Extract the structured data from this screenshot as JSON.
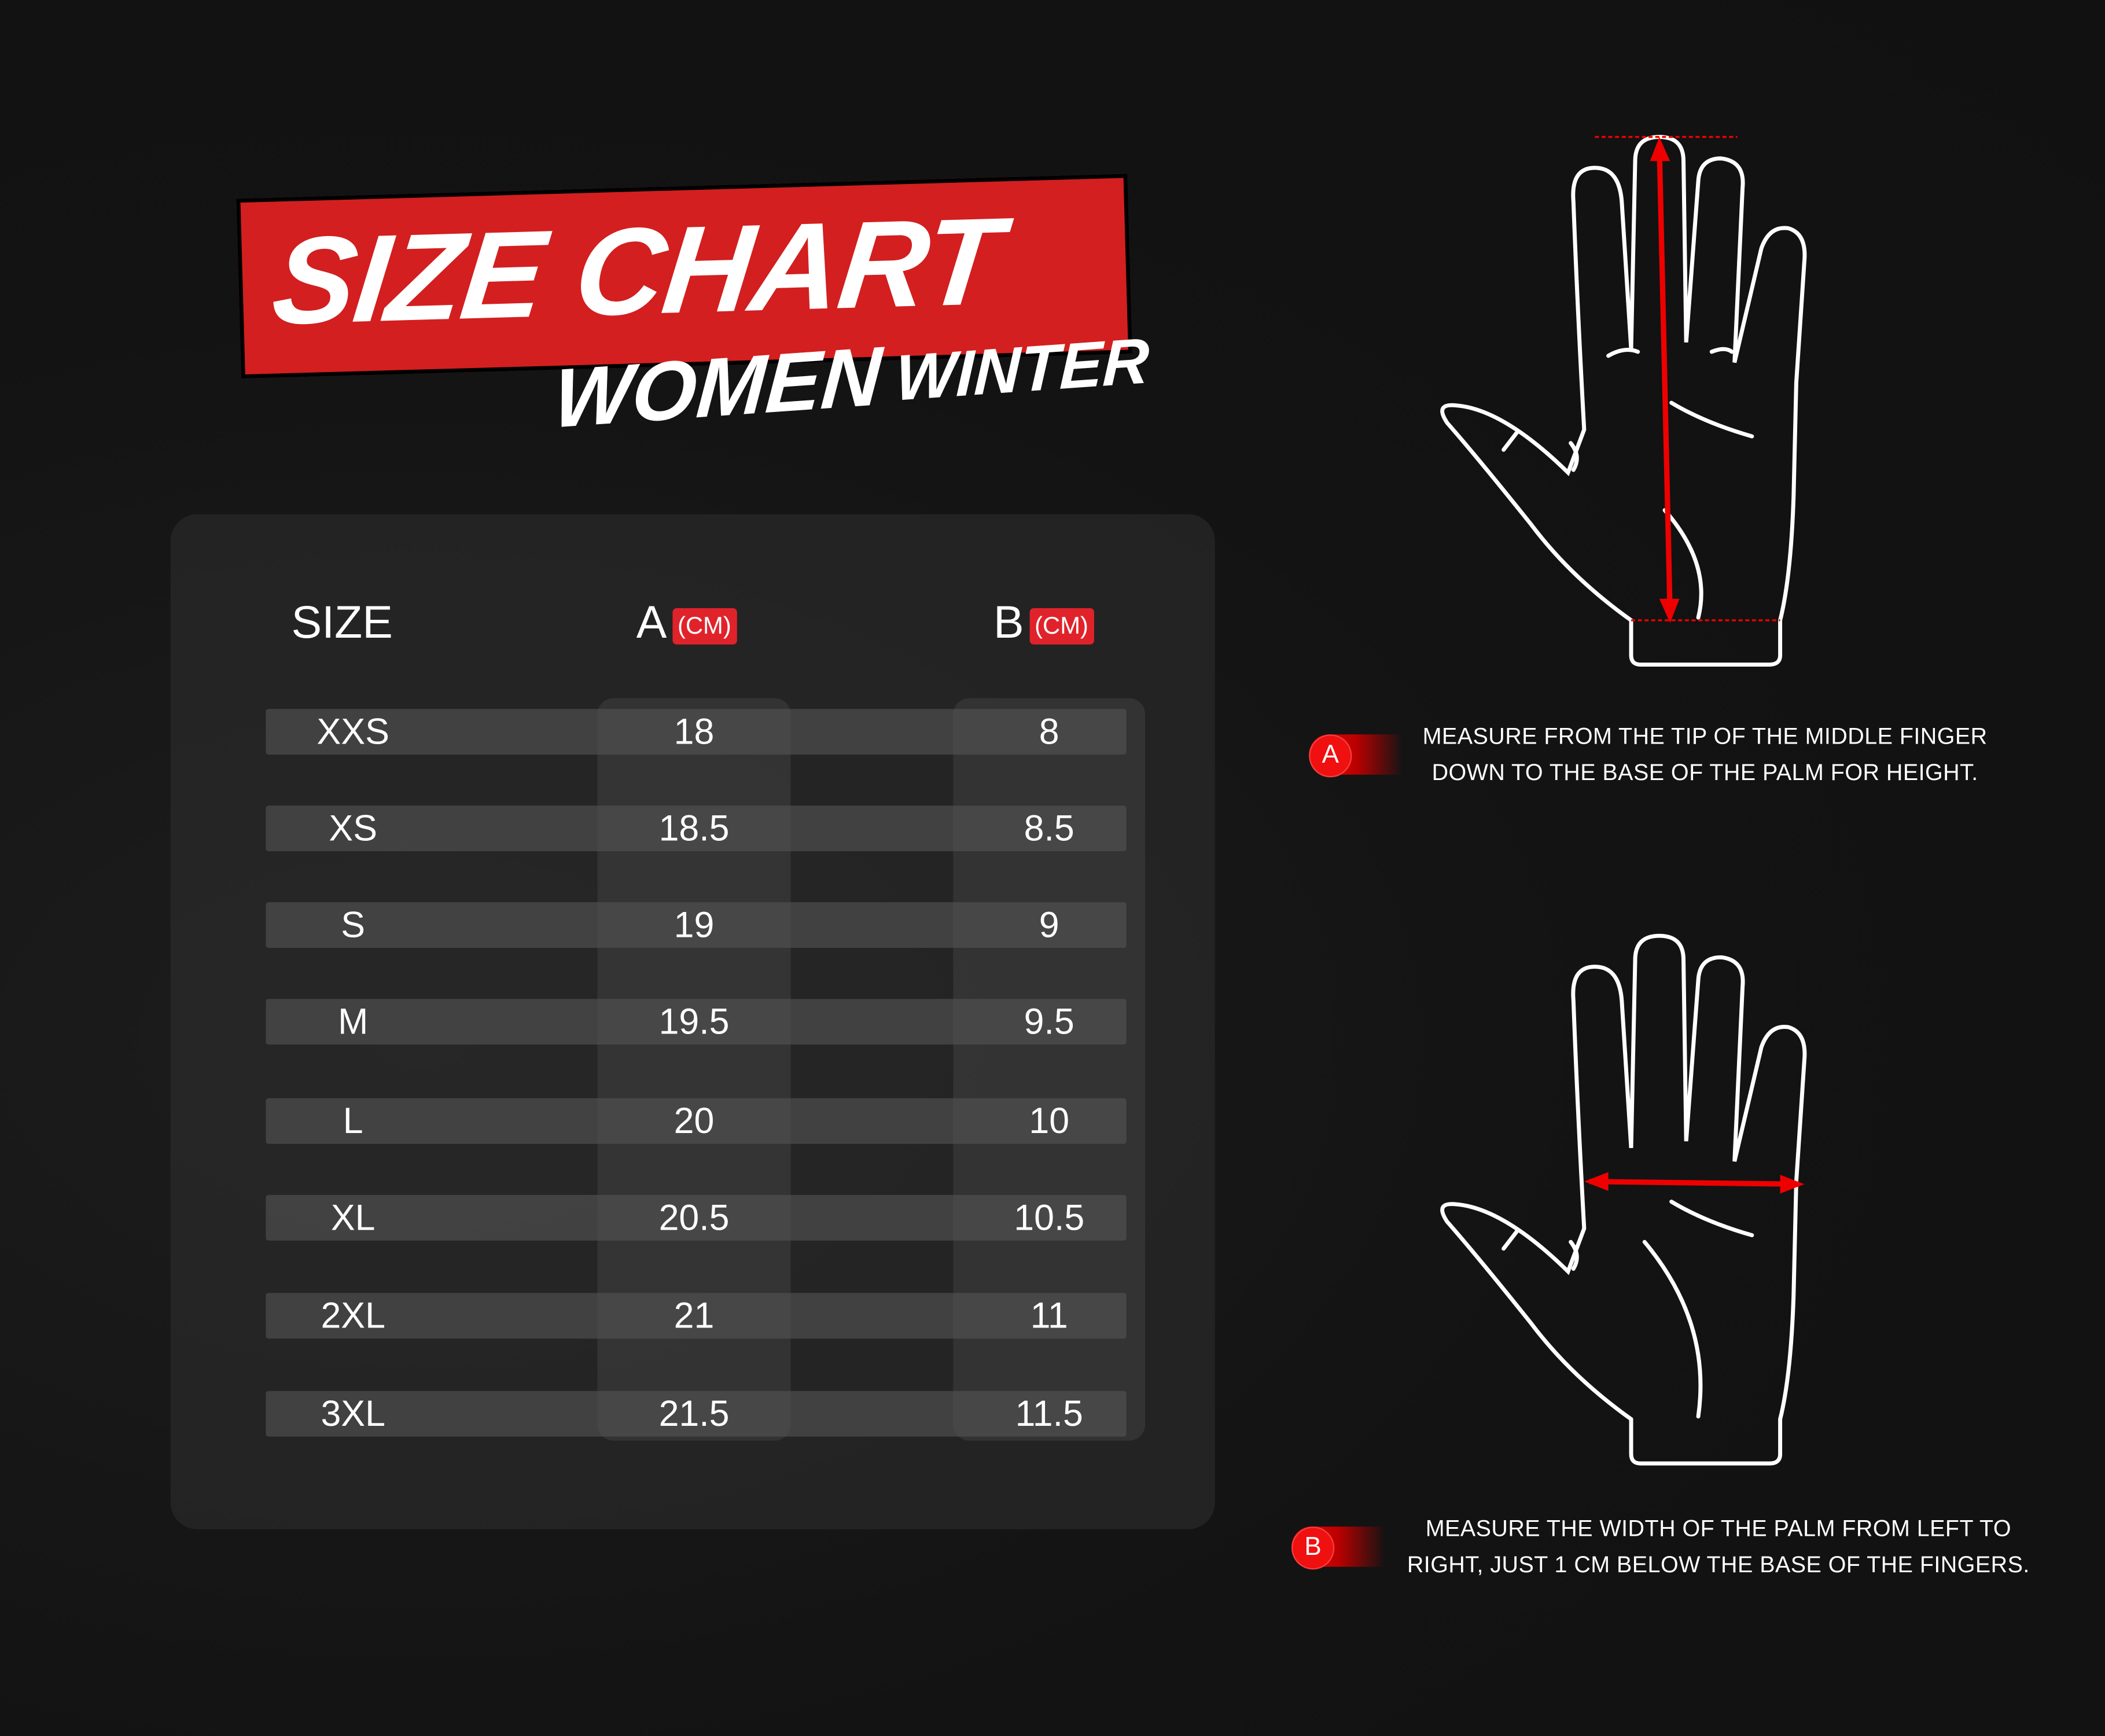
{
  "header": {
    "title": "SIZE CHART",
    "gender": "WOMEN",
    "season": "WINTER"
  },
  "table": {
    "columns": [
      {
        "label": "SIZE"
      },
      {
        "label": "A",
        "unit": "(CM)"
      },
      {
        "label": "B",
        "unit": "(CM)"
      }
    ],
    "rows": [
      {
        "size": "XXS",
        "a": "18",
        "b": "8"
      },
      {
        "size": "XS",
        "a": "18.5",
        "b": "8.5"
      },
      {
        "size": "S",
        "a": "19",
        "b": "9"
      },
      {
        "size": "M",
        "a": "19.5",
        "b": "9.5"
      },
      {
        "size": "L",
        "a": "20",
        "b": "10"
      },
      {
        "size": "XL",
        "a": "20.5",
        "b": "10.5"
      },
      {
        "size": "2XL",
        "a": "21",
        "b": "11"
      },
      {
        "size": "3XL",
        "a": "21.5",
        "b": "11.5"
      }
    ]
  },
  "instructions": [
    {
      "badge": "A",
      "line1": "MEASURE FROM THE TIP OF THE MIDDLE FINGER",
      "line2": "DOWN TO THE BASE OF THE PALM FOR HEIGHT."
    },
    {
      "badge": "B",
      "line1": "MEASURE THE WIDTH OF THE PALM FROM LEFT TO",
      "line2": "RIGHT, JUST 1 CM BELOW THE BASE OF THE FINGERS."
    }
  ],
  "colors": {
    "accent": "#d31f1f",
    "background": "#121212",
    "measure_arrow": "#e00000"
  }
}
